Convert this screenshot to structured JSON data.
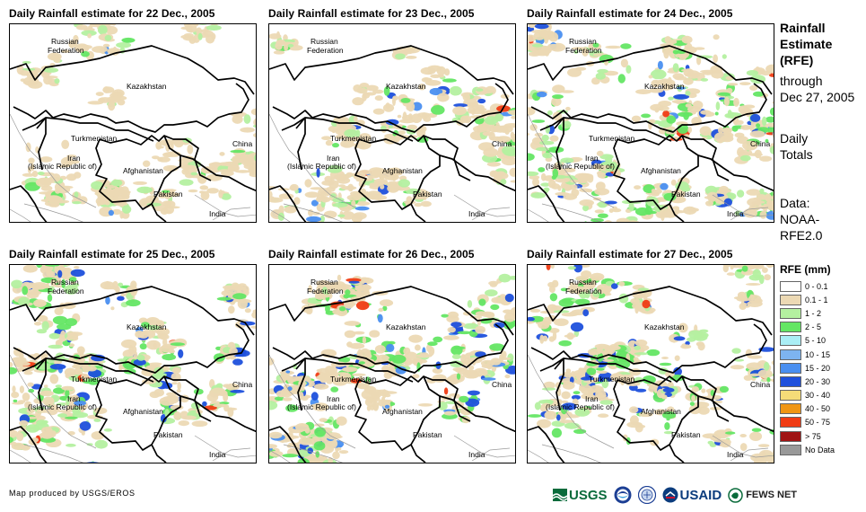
{
  "panels": [
    {
      "title": "Daily Rainfall estimate for 22 Dec., 2005"
    },
    {
      "title": "Daily Rainfall estimate for 23 Dec., 2005"
    },
    {
      "title": "Daily Rainfall estimate for 24 Dec., 2005"
    },
    {
      "title": "Daily Rainfall estimate for 25 Dec., 2005"
    },
    {
      "title": "Daily Rainfall estimate for 26 Dec., 2005"
    },
    {
      "title": "Daily Rainfall estimate for 27 Dec., 2005"
    }
  ],
  "map_labels": {
    "russia_1": "Russian",
    "russia_2": "Federation",
    "kazakhstan": "Kazakhstan",
    "turkmenistan": "Turkmenistan",
    "iran_1": "Iran",
    "iran_2": "(Islamic Republic of)",
    "afghanistan": "Afghanistan",
    "pakistan": "Pakistan",
    "china": "China",
    "india": "India"
  },
  "side": {
    "title_1": "Rainfall",
    "title_2": "Estimate",
    "title_3": "(RFE)",
    "through_1": "through",
    "through_2": "Dec 27, 2005",
    "totals_1": "Daily",
    "totals_2": "Totals",
    "data_1": "Data:",
    "data_2": "NOAA-",
    "data_3": "RFE2.0"
  },
  "legend": {
    "title": "RFE (mm)",
    "items": [
      {
        "label": "0 - 0.1",
        "color": "#ffffff"
      },
      {
        "label": "0.1 - 1",
        "color": "#ecd9b4"
      },
      {
        "label": "1 - 2",
        "color": "#b4f0a0"
      },
      {
        "label": "2 - 5",
        "color": "#64e664"
      },
      {
        "label": "5 - 10",
        "color": "#aaeef5"
      },
      {
        "label": "10 - 15",
        "color": "#7db4f0"
      },
      {
        "label": "15 - 20",
        "color": "#4a8ff0"
      },
      {
        "label": "20 - 30",
        "color": "#1e50dc"
      },
      {
        "label": "30 - 40",
        "color": "#f5dc78"
      },
      {
        "label": "40 - 50",
        "color": "#f09614"
      },
      {
        "label": "50 - 75",
        "color": "#f03c14"
      },
      {
        "label": "> 75",
        "color": "#a01414"
      },
      {
        "label": "No Data",
        "color": "#999999"
      }
    ]
  },
  "credit": "Map produced by USGS/EROS",
  "logos": {
    "usgs": "USGS",
    "usaid": "USAID",
    "fews": "FEWS NET"
  },
  "rain_levels": [
    {
      "light": 0.25,
      "mid": 0.03,
      "heavy": 0.0,
      "extreme": 0.0
    },
    {
      "light": 0.35,
      "mid": 0.08,
      "heavy": 0.02,
      "extreme": 0.004
    },
    {
      "light": 0.55,
      "mid": 0.18,
      "heavy": 0.05,
      "extreme": 0.01
    },
    {
      "light": 0.6,
      "mid": 0.25,
      "heavy": 0.08,
      "extreme": 0.015
    },
    {
      "light": 0.55,
      "mid": 0.3,
      "heavy": 0.08,
      "extreme": 0.01
    },
    {
      "light": 0.55,
      "mid": 0.25,
      "heavy": 0.1,
      "extreme": 0.006
    }
  ]
}
